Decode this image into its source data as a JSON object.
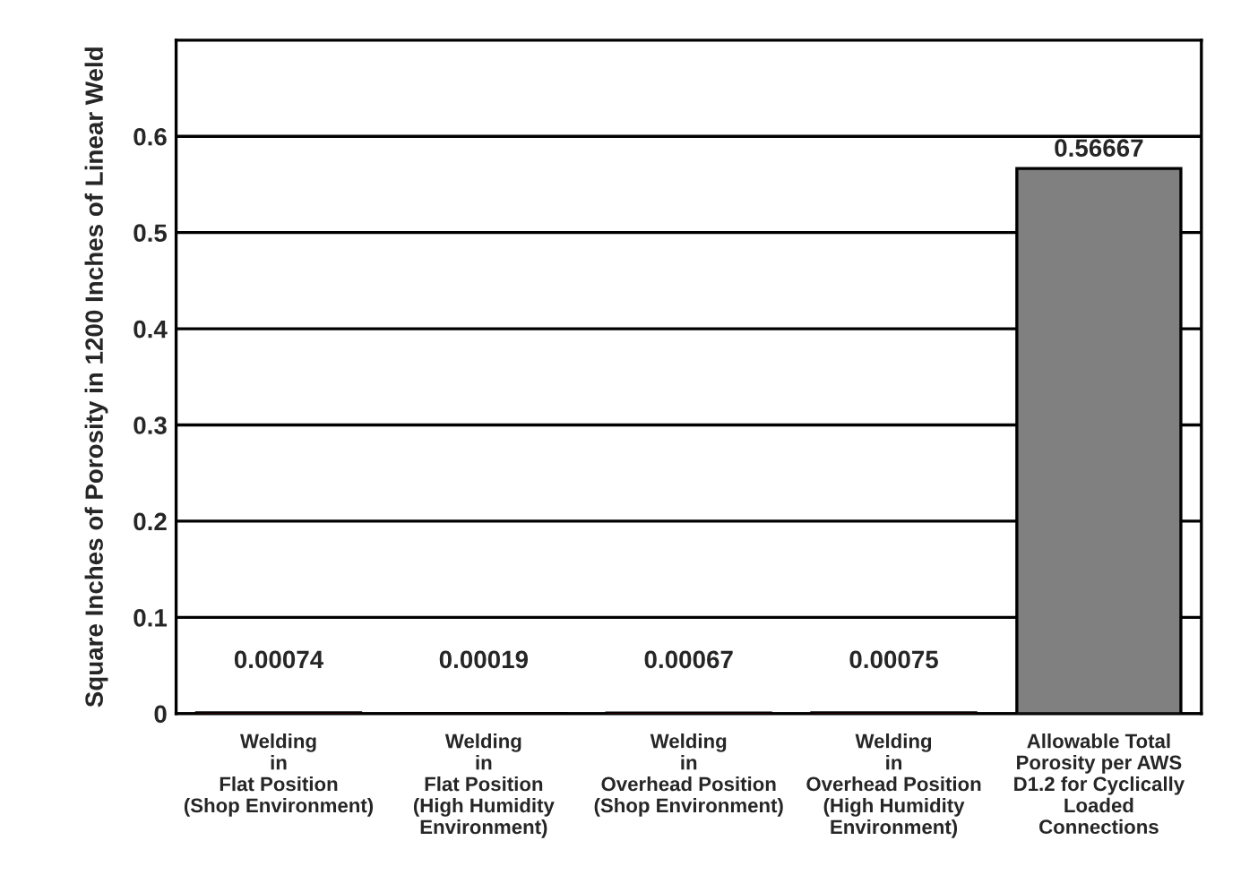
{
  "chart_data": {
    "type": "bar",
    "ylabel": "Square Inches of Porosity in 1200 Inches of Linear Weld",
    "categories": [
      "Welding\nin\nFlat Position\n(Shop Environment)",
      "Welding\nin\nFlat Position\n(High Humidity\nEnvironment)",
      "Welding\nin\nOverhead Position\n(Shop Environment)",
      "Welding\nin\nOverhead Position\n(High Humidity\nEnvironment)",
      "Allowable Total\nPorosity per AWS\nD1.2 for Cyclically\nLoaded\nConnections"
    ],
    "values": [
      0.00074,
      0.00019,
      0.00067,
      0.00075,
      0.56667
    ],
    "colors": [
      "#ff0000",
      "#ff0000",
      "#ff0000",
      "#ff0000",
      "#808080"
    ],
    "data_labels": true,
    "ylim": [
      0,
      0.7
    ],
    "yticks": [
      0,
      0.1,
      0.2,
      0.3,
      0.4,
      0.5,
      0.6
    ],
    "grid": "y"
  }
}
